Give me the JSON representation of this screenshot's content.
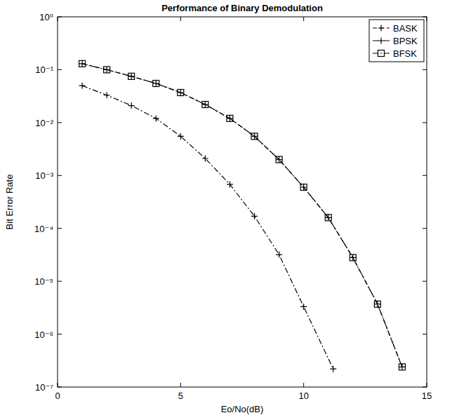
{
  "chart_data": {
    "type": "line",
    "title": "Performance of Binary Demodulation",
    "x_label": "Eo/No(dB)",
    "y_label": "Bit Error Rate",
    "log": "y",
    "grid": false,
    "legend": "top-right",
    "xlim": [
      0,
      15
    ],
    "xticks": [
      0,
      5,
      10,
      15
    ],
    "ylim": [
      1e-07,
      1
    ],
    "yticks": [
      {
        "value": 1,
        "label": "10⁰"
      },
      {
        "value": 0.1,
        "label": "10⁻¹"
      },
      {
        "value": 0.01,
        "label": "10⁻²"
      },
      {
        "value": 0.001,
        "label": "10⁻³"
      },
      {
        "value": 0.0001,
        "label": "10⁻⁴"
      },
      {
        "value": 1e-05,
        "label": "10⁻⁵"
      },
      {
        "value": 1e-06,
        "label": "10⁻⁶"
      },
      {
        "value": 1e-07,
        "label": "10⁻⁷"
      }
    ],
    "series": [
      {
        "name": "BASK",
        "color": "#000000",
        "marker": "plus",
        "line_style": "dashed",
        "x": [
          1,
          2,
          3,
          4,
          5,
          6,
          7,
          8,
          9,
          10,
          11,
          12,
          13,
          14
        ],
        "values": [
          0.13,
          0.1,
          0.075,
          0.055,
          0.037,
          0.022,
          0.012,
          0.0055,
          0.002,
          0.0006,
          0.00016,
          2.8e-05,
          3.7e-06,
          2.4e-07
        ]
      },
      {
        "name": "BPSK",
        "color": "#000000",
        "marker": "plus",
        "line_style": "dashdot",
        "x": [
          1,
          2,
          3,
          4,
          5,
          6,
          7,
          8,
          9,
          10,
          11.2
        ],
        "values": [
          0.05,
          0.033,
          0.021,
          0.012,
          0.0055,
          0.0021,
          0.00068,
          0.00017,
          3.2e-05,
          3.3e-06,
          2.2e-07
        ]
      },
      {
        "name": "BFSK",
        "color": "#000000",
        "marker": "square",
        "line_style": "dashdot",
        "x": [
          1,
          2,
          3,
          4,
          5,
          6,
          7,
          8,
          9,
          10,
          11,
          12,
          13,
          14
        ],
        "values": [
          0.13,
          0.1,
          0.075,
          0.055,
          0.037,
          0.022,
          0.012,
          0.0055,
          0.002,
          0.0006,
          0.00016,
          2.8e-05,
          3.7e-06,
          2.4e-07
        ]
      }
    ]
  }
}
